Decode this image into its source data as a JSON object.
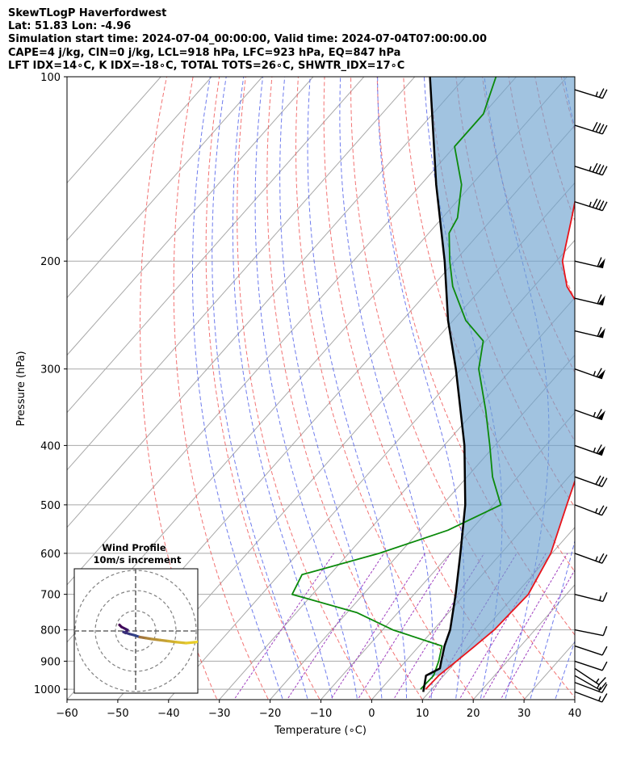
{
  "header": {
    "line1": "SkewTLogP Haverfordwest",
    "line2": "Lat: 51.83   Lon: -4.96",
    "line3": "Simulation start time: 2024-07-04_00:00:00, Valid time: 2024-07-04T07:00:00.00",
    "line4": "CAPE=4 j/kg, CIN=0 j/kg, LCL=918 hPa, LFC=923 hPa, EQ=847 hPa",
    "line5": "LFT IDX=14∘C, K IDX=-18∘C, TOTAL TOTS=26∘C, SHWTR_IDX=17∘C"
  },
  "colors": {
    "temperature": "#e8141b",
    "dewpoint": "#0b8a0b",
    "parcel": "#000000",
    "cape_fill": "#6fa3cf",
    "dry_adiabat": "#f05a5a",
    "moist_adiabat": "#4a5ae8",
    "mixing_ratio": "#a040c0",
    "isotherm": "#a8a8a8"
  },
  "chart_data": {
    "type": "skewt-logp",
    "xlabel": "Temperature (∘C)",
    "ylabel": "Pressure (hPa)",
    "xlim": [
      -60,
      40
    ],
    "ylim": [
      1040,
      100
    ],
    "x_ticks": [
      -60,
      -50,
      -40,
      -30,
      -20,
      -10,
      0,
      10,
      20,
      30,
      40
    ],
    "y_ticks": [
      1000,
      900,
      800,
      700,
      600,
      500,
      400,
      300,
      200,
      100
    ],
    "y_scale": "log",
    "grid": true,
    "temperature": [
      [
        1000,
        8.8
      ],
      [
        950,
        9.0
      ],
      [
        900,
        10.0
      ],
      [
        850,
        11.0
      ],
      [
        800,
        12.0
      ],
      [
        700,
        12.5
      ],
      [
        600,
        9.8
      ],
      [
        500,
        4.5
      ],
      [
        450,
        1.5
      ],
      [
        400,
        -3.0
      ],
      [
        350,
        -8.0
      ],
      [
        300,
        -12.5
      ],
      [
        275,
        -16.8
      ],
      [
        250,
        -23.5
      ],
      [
        220,
        -33.5
      ],
      [
        200,
        -38.8
      ],
      [
        170,
        -44.5
      ],
      [
        150,
        -49.0
      ],
      [
        130,
        -54.0
      ],
      [
        115,
        -60.0
      ],
      [
        100,
        -67.5
      ]
    ],
    "dewpoint": [
      [
        1000,
        7.8
      ],
      [
        950,
        8.0
      ],
      [
        900,
        6.5
      ],
      [
        850,
        4.5
      ],
      [
        800,
        -8.0
      ],
      [
        750,
        -18.0
      ],
      [
        700,
        -34.0
      ],
      [
        650,
        -35.5
      ],
      [
        600,
        -24.0
      ],
      [
        550,
        -14.5
      ],
      [
        500,
        -8.5
      ],
      [
        450,
        -15.0
      ],
      [
        400,
        -21.0
      ],
      [
        350,
        -28.0
      ],
      [
        300,
        -36.5
      ],
      [
        270,
        -40.5
      ],
      [
        250,
        -47.5
      ],
      [
        220,
        -56.0
      ],
      [
        200,
        -61.0
      ],
      [
        180,
        -66.0
      ],
      [
        170,
        -67.0
      ],
      [
        150,
        -72.0
      ],
      [
        130,
        -80.0
      ],
      [
        115,
        -80.0
      ],
      [
        100,
        -84.0
      ]
    ],
    "parcel": [
      [
        1010,
        8.8
      ],
      [
        950,
        6.5
      ],
      [
        925,
        8.0
      ],
      [
        900,
        7.0
      ],
      [
        850,
        5.0
      ],
      [
        800,
        3.3
      ],
      [
        700,
        -1.8
      ],
      [
        600,
        -8.0
      ],
      [
        500,
        -15.5
      ],
      [
        400,
        -26.0
      ],
      [
        300,
        -41.0
      ],
      [
        250,
        -51.0
      ],
      [
        200,
        -62.0
      ],
      [
        150,
        -77.0
      ],
      [
        120,
        -88.0
      ],
      [
        100,
        -97.0
      ]
    ],
    "wind_barbs": [
      {
        "p": 1010,
        "u": -8,
        "v": 3
      },
      {
        "p": 975,
        "u": -8,
        "v": 3
      },
      {
        "p": 950,
        "u": -7,
        "v": 4
      },
      {
        "p": 925,
        "u": -6,
        "v": 4
      },
      {
        "p": 900,
        "u": -6,
        "v": 2
      },
      {
        "p": 850,
        "u": -6,
        "v": 2
      },
      {
        "p": 800,
        "u": -5,
        "v": 1
      },
      {
        "p": 700,
        "u": -8,
        "v": 2
      },
      {
        "p": 600,
        "u": -11,
        "v": 4
      },
      {
        "p": 500,
        "u": -13,
        "v": 5
      },
      {
        "p": 450,
        "u": -14,
        "v": 5
      },
      {
        "p": 400,
        "u": -31,
        "v": 11
      },
      {
        "p": 350,
        "u": -31,
        "v": 11
      },
      {
        "p": 300,
        "u": -31,
        "v": 11
      },
      {
        "p": 260,
        "u": -30,
        "v": 7
      },
      {
        "p": 230,
        "u": -30,
        "v": 7
      },
      {
        "p": 200,
        "u": -30,
        "v": 7
      },
      {
        "p": 160,
        "u": -22,
        "v": 7
      },
      {
        "p": 140,
        "u": -22,
        "v": 7
      },
      {
        "p": 120,
        "u": -19,
        "v": 6
      },
      {
        "p": 105,
        "u": -13,
        "v": 4
      }
    ],
    "hodograph": {
      "title": "Wind Profile",
      "subtitle": "10m/s increment",
      "rings_ms": [
        10,
        20,
        30
      ],
      "points": [
        [
          -8.0,
          3.0
        ],
        [
          -7.0,
          2.0
        ],
        [
          -5.0,
          1.0
        ],
        [
          -4.0,
          0.5
        ],
        [
          -5.0,
          -1.0
        ],
        [
          -6.0,
          -0.5
        ],
        [
          -3.0,
          -1.5
        ],
        [
          -1.0,
          -2.0
        ],
        [
          2.0,
          -3.0
        ],
        [
          5.0,
          -3.5
        ],
        [
          8.0,
          -4.0
        ],
        [
          12.0,
          -4.5
        ],
        [
          16.0,
          -5.0
        ],
        [
          20.0,
          -5.5
        ],
        [
          25.0,
          -6.0
        ],
        [
          30.0,
          -5.5
        ],
        [
          34.0,
          -4.5
        ],
        [
          38.0,
          -3.0
        ]
      ]
    }
  }
}
